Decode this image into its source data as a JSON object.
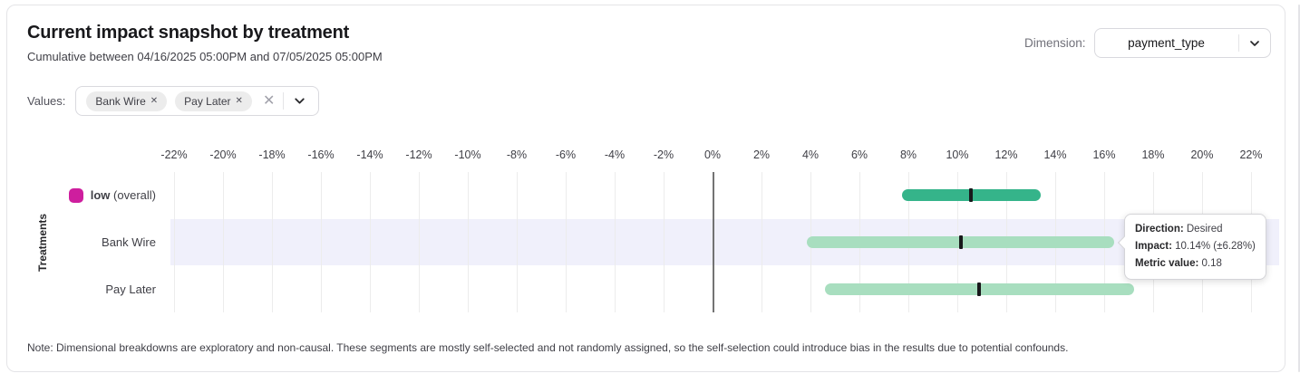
{
  "header": {
    "title": "Current impact snapshot by treatment",
    "subtitle": "Cumulative between 04/16/2025 05:00PM and 07/05/2025 05:00PM",
    "dimension_label": "Dimension:",
    "dimension_value": "payment_type"
  },
  "filters": {
    "values_label": "Values:",
    "chips": [
      {
        "label": "Bank Wire"
      },
      {
        "label": "Pay Later"
      }
    ],
    "chip_remove_glyph": "✕",
    "clear_glyph": "✕"
  },
  "chart_data": {
    "type": "bar",
    "subtype": "horizontal-interval",
    "title": "Current impact snapshot by treatment",
    "xlabel": "",
    "ylabel": "Treatments",
    "x_tick_values": [
      -22,
      -20,
      -18,
      -16,
      -14,
      -12,
      -10,
      -8,
      -6,
      -4,
      -2,
      0,
      2,
      4,
      6,
      8,
      10,
      12,
      14,
      16,
      18,
      20,
      22
    ],
    "x_tick_suffix": "%",
    "xlim": [
      -23,
      23
    ],
    "grid": "vertical",
    "rows": [
      {
        "label": "low",
        "label_suffix": "(overall)",
        "bold_label": true,
        "swatch": true,
        "impact_pct": 10.57,
        "moe_pct": 2.83,
        "low_pct": 7.74,
        "high_pct": 13.41,
        "bar_style": "overall",
        "highlighted": false
      },
      {
        "label": "Bank Wire",
        "label_suffix": "",
        "bold_label": false,
        "swatch": false,
        "impact_pct": 10.14,
        "moe_pct": 6.28,
        "low_pct": 3.86,
        "high_pct": 16.42,
        "bar_style": "segment",
        "highlighted": true
      },
      {
        "label": "Pay Later",
        "label_suffix": "",
        "bold_label": false,
        "swatch": false,
        "impact_pct": 10.89,
        "moe_pct": 6.33,
        "low_pct": 4.59,
        "high_pct": 17.22,
        "bar_style": "segment",
        "highlighted": false
      }
    ],
    "colors": {
      "overall_bar": "#35b48a",
      "segment_bar": "#a8debf",
      "legend_swatch": "#ce1e9e",
      "row_highlight": "#f0f0fb",
      "center_tick": "#18181b"
    }
  },
  "tooltip": {
    "direction_label": "Direction:",
    "direction_value": "Desired",
    "impact_label": "Impact:",
    "impact_value": "10.14% (±6.28%)",
    "metric_label": "Metric value:",
    "metric_value": "0.18"
  },
  "note": "Note: Dimensional breakdowns are exploratory and non-causal. These segments are mostly self-selected and not randomly assigned, so the self-selection could introduce bias in the results due to potential confounds."
}
